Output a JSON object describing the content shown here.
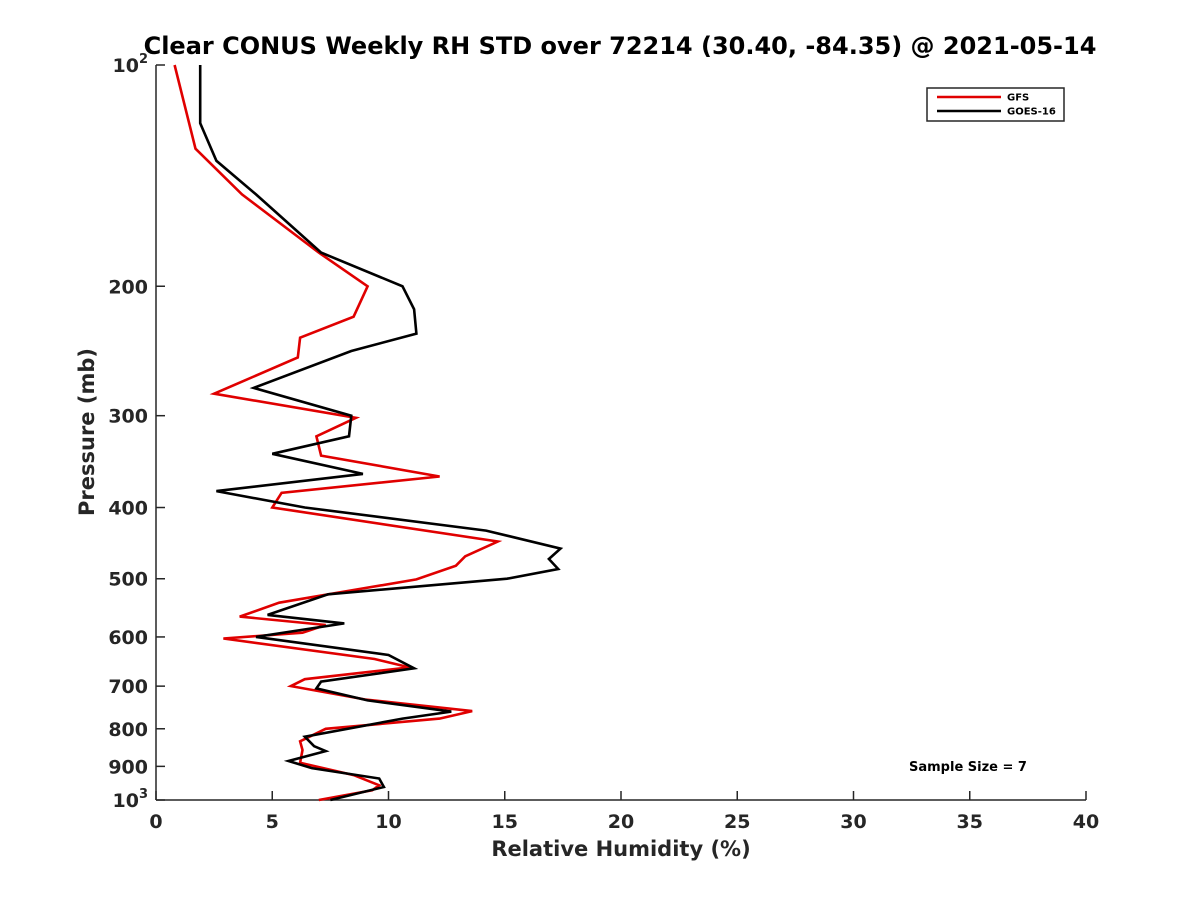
{
  "chart_data": {
    "type": "line",
    "title": "Clear CONUS Weekly RH STD over 72214 (30.40, -84.35) @ 2021-05-14",
    "xlabel": "Relative Humidity (%)",
    "ylabel": "Pressure (mb)",
    "xlim": [
      0,
      40
    ],
    "ylim": [
      100,
      1000
    ],
    "yscale": "log",
    "yreversed": true,
    "xticks": [
      0,
      5,
      10,
      15,
      20,
      25,
      30,
      35,
      40
    ],
    "yticks": [
      {
        "value": 100,
        "base": "10",
        "exp": "2"
      },
      {
        "value": 200,
        "label": "200"
      },
      {
        "value": 300,
        "label": "300"
      },
      {
        "value": 400,
        "label": "400"
      },
      {
        "value": 500,
        "label": "500"
      },
      {
        "value": 600,
        "label": "600"
      },
      {
        "value": 700,
        "label": "700"
      },
      {
        "value": 800,
        "label": "800"
      },
      {
        "value": 900,
        "label": "900"
      },
      {
        "value": 1000,
        "base": "10",
        "exp": "3"
      }
    ],
    "legend_position": "top-right",
    "annotation": "Sample Size = 7",
    "series": [
      {
        "name": "GFS",
        "color": "#e00000",
        "points": [
          [
            0.8,
            100
          ],
          [
            1.7,
            130
          ],
          [
            3.7,
            150
          ],
          [
            7.0,
            180
          ],
          [
            9.1,
            200
          ],
          [
            8.5,
            220
          ],
          [
            6.2,
            235
          ],
          [
            6.1,
            250
          ],
          [
            2.5,
            280
          ],
          [
            8.6,
            302
          ],
          [
            6.9,
            320
          ],
          [
            7.1,
            340
          ],
          [
            12.2,
            363
          ],
          [
            5.4,
            382
          ],
          [
            5.0,
            400
          ],
          [
            14.7,
            445
          ],
          [
            13.3,
            466
          ],
          [
            12.9,
            480
          ],
          [
            11.2,
            501
          ],
          [
            5.3,
            539
          ],
          [
            3.6,
            563
          ],
          [
            7.3,
            578
          ],
          [
            6.3,
            592
          ],
          [
            2.9,
            603
          ],
          [
            9.4,
            643
          ],
          [
            10.9,
            660
          ],
          [
            6.4,
            685
          ],
          [
            5.8,
            700
          ],
          [
            9.0,
            730
          ],
          [
            13.6,
            757
          ],
          [
            12.2,
            775
          ],
          [
            7.3,
            800
          ],
          [
            6.2,
            832
          ],
          [
            6.3,
            855
          ],
          [
            6.2,
            890
          ],
          [
            8.5,
            925
          ],
          [
            9.6,
            955
          ],
          [
            9.3,
            970
          ],
          [
            7.0,
            1000
          ]
        ]
      },
      {
        "name": "GOES-16",
        "color": "#000000",
        "points": [
          [
            1.9,
            100
          ],
          [
            1.9,
            120
          ],
          [
            2.6,
            135
          ],
          [
            4.3,
            150
          ],
          [
            7.1,
            180
          ],
          [
            10.6,
            200
          ],
          [
            11.1,
            215
          ],
          [
            11.2,
            232
          ],
          [
            8.4,
            245
          ],
          [
            4.2,
            275
          ],
          [
            8.4,
            300
          ],
          [
            8.3,
            320
          ],
          [
            5.0,
            338
          ],
          [
            8.9,
            360
          ],
          [
            2.6,
            380
          ],
          [
            6.4,
            400
          ],
          [
            14.2,
            430
          ],
          [
            17.4,
            455
          ],
          [
            16.9,
            470
          ],
          [
            17.3,
            485
          ],
          [
            15.1,
            500
          ],
          [
            7.4,
            525
          ],
          [
            4.8,
            560
          ],
          [
            8.1,
            575
          ],
          [
            4.3,
            600
          ],
          [
            10.0,
            635
          ],
          [
            11.1,
            662
          ],
          [
            7.1,
            690
          ],
          [
            6.9,
            705
          ],
          [
            9.1,
            732
          ],
          [
            12.7,
            758
          ],
          [
            10.6,
            775
          ],
          [
            6.4,
            820
          ],
          [
            6.8,
            845
          ],
          [
            7.3,
            858
          ],
          [
            5.7,
            885
          ],
          [
            6.7,
            905
          ],
          [
            9.6,
            935
          ],
          [
            9.8,
            960
          ],
          [
            7.5,
            1000
          ]
        ]
      }
    ]
  }
}
